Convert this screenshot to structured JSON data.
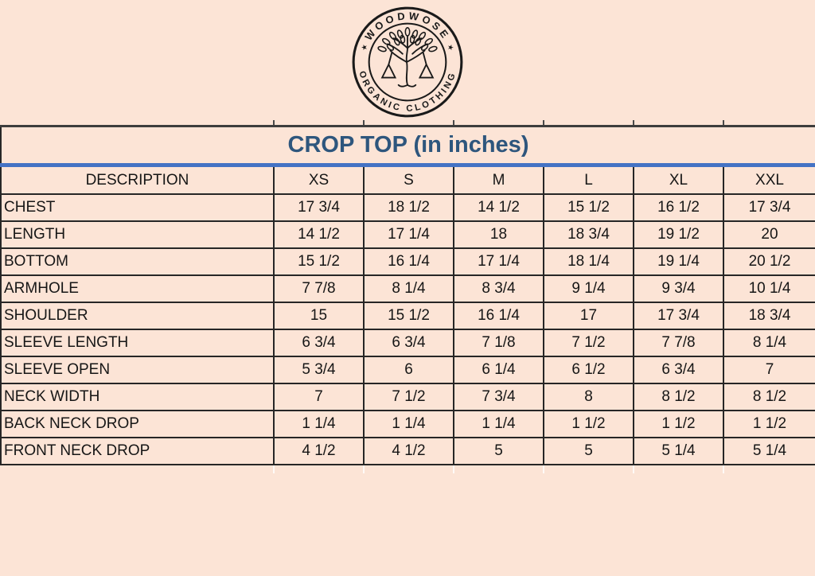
{
  "logo": {
    "top_text": "WOODWOSE",
    "bottom_text": "ORGANIC CLOTHING",
    "star": "★"
  },
  "title": "CROP TOP (in inches)",
  "colors": {
    "background": "#fce4d6",
    "title_text": "#2e567d",
    "accent_line_blue": "#4472c4",
    "border_dark": "#262626",
    "text": "#161616",
    "logo_ink": "#1a1a1a"
  },
  "table": {
    "columns": [
      "DESCRIPTION",
      "XS",
      "S",
      "M",
      "L",
      "XL",
      "XXL"
    ],
    "rows": [
      {
        "label": "CHEST",
        "values": [
          "17 3/4",
          "18 1/2",
          "14 1/2",
          "15 1/2",
          "16 1/2",
          "17 3/4"
        ]
      },
      {
        "label": "LENGTH",
        "values": [
          "14 1/2",
          "17 1/4",
          "18",
          "18 3/4",
          "19 1/2",
          "20"
        ]
      },
      {
        "label": "BOTTOM",
        "values": [
          "15 1/2",
          "16 1/4",
          "17 1/4",
          "18 1/4",
          "19 1/4",
          "20 1/2"
        ]
      },
      {
        "label": "ARMHOLE",
        "values": [
          "7 7/8",
          "8 1/4",
          "8 3/4",
          "9 1/4",
          "9 3/4",
          "10 1/4"
        ]
      },
      {
        "label": "SHOULDER",
        "values": [
          "15",
          "15 1/2",
          "16 1/4",
          "17",
          "17 3/4",
          "18 3/4"
        ]
      },
      {
        "label": "SLEEVE LENGTH",
        "values": [
          "6 3/4",
          "6 3/4",
          "7 1/8",
          "7 1/2",
          "7 7/8",
          "8 1/4"
        ]
      },
      {
        "label": "SLEEVE OPEN",
        "values": [
          "5 3/4",
          "6",
          "6 1/4",
          "6 1/2",
          "6 3/4",
          "7"
        ]
      },
      {
        "label": "NECK WIDTH",
        "values": [
          "7",
          "7 1/2",
          "7 3/4",
          "8",
          "8 1/2",
          "8 1/2"
        ]
      },
      {
        "label": "BACK NECK DROP",
        "values": [
          "1 1/4",
          "1 1/4",
          "1 1/4",
          "1 1/2",
          "1 1/2",
          "1 1/2"
        ]
      },
      {
        "label": "FRONT NECK DROP",
        "values": [
          "4 1/2",
          "4 1/2",
          "5",
          "5",
          "5 1/4",
          "5 1/4"
        ]
      }
    ]
  }
}
